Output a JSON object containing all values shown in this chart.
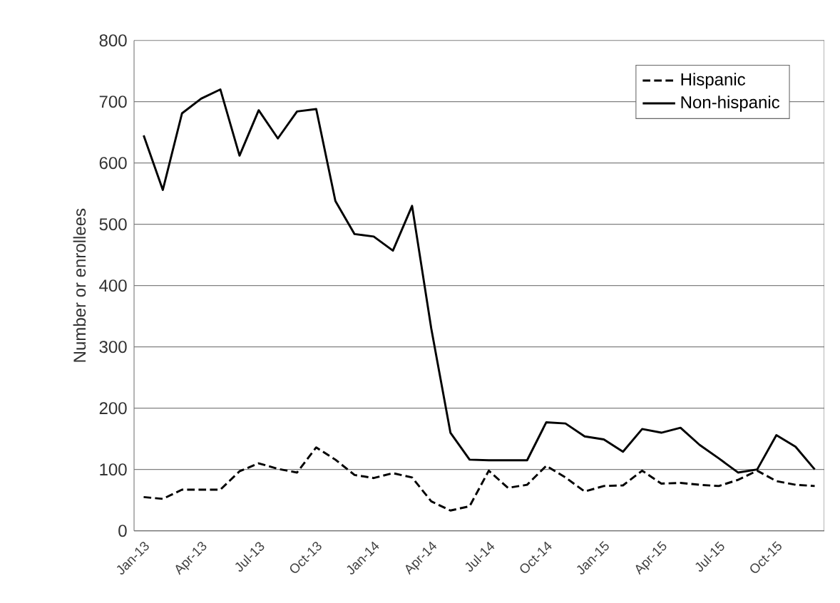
{
  "chart_data": {
    "type": "line",
    "ylabel": "Number or enrollees",
    "categories": [
      "Jan-13",
      null,
      null,
      "Apr-13",
      null,
      null,
      "Jul-13",
      null,
      null,
      "Oct-13",
      null,
      null,
      "Jan-14",
      null,
      null,
      "Apr-14",
      null,
      null,
      "Jul-14",
      null,
      null,
      "Oct-14",
      null,
      null,
      "Jan-15",
      null,
      null,
      "Apr-15",
      null,
      null,
      "Jul-15",
      null,
      null,
      "Oct-15",
      null,
      null
    ],
    "series": [
      {
        "name": "Hispanic",
        "color": "#000000",
        "line_style": "dashed",
        "values": [
          55,
          52,
          67,
          67,
          67,
          97,
          110,
          101,
          95,
          136,
          116,
          91,
          86,
          94,
          87,
          48,
          33,
          40,
          98,
          70,
          75,
          106,
          87,
          64,
          73,
          74,
          98,
          77,
          78,
          75,
          73,
          83,
          98,
          81,
          75,
          73
        ]
      },
      {
        "name": "Non-hispanic",
        "color": "#000000",
        "line_style": "solid",
        "values": [
          645,
          556,
          681,
          705,
          720,
          612,
          686,
          640,
          684,
          688,
          538,
          484,
          480,
          457,
          530,
          330,
          160,
          116,
          115,
          115,
          115,
          177,
          175,
          154,
          149,
          129,
          166,
          160,
          168,
          140,
          118,
          95,
          100,
          156,
          137,
          100
        ]
      }
    ],
    "ylim": [
      0,
      800
    ],
    "yticks": [
      0,
      100,
      200,
      300,
      400,
      500,
      600,
      700,
      800
    ],
    "grid": "y",
    "legend": "top right"
  }
}
